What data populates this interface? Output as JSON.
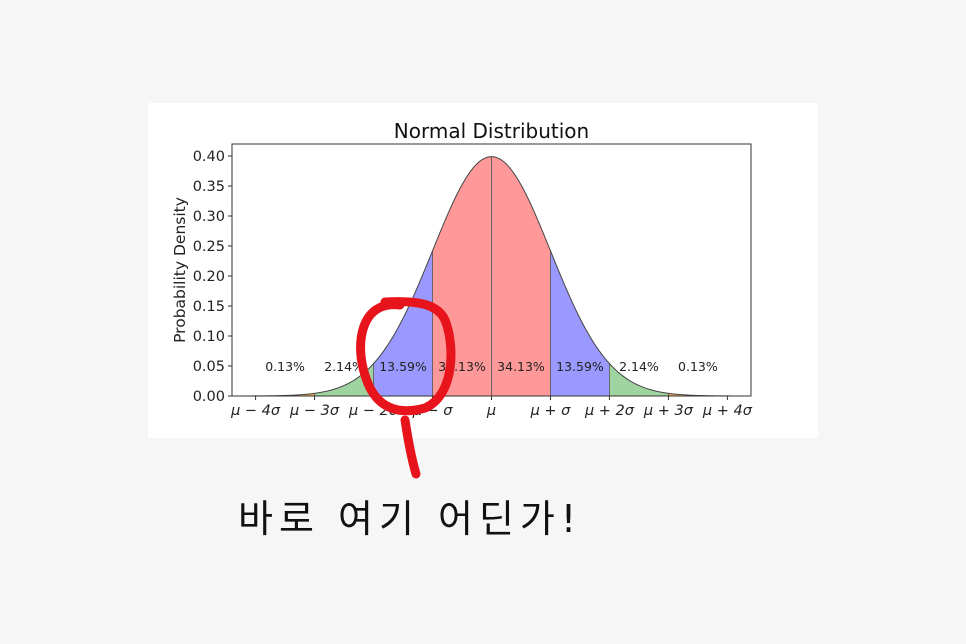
{
  "chart_data": {
    "type": "area",
    "title": "Normal Distribution",
    "xlabel": "",
    "ylabel": "Probability Density",
    "xlim": [
      -4.4,
      4.4
    ],
    "ylim": [
      0,
      0.42
    ],
    "grid": false,
    "x_ticks": [
      -4,
      -3,
      -2,
      -1,
      0,
      1,
      2,
      3,
      4
    ],
    "x_tick_labels": [
      "μ − 4σ",
      "μ − 3σ",
      "μ − 2σ",
      "μ − σ",
      "μ",
      "μ + σ",
      "μ + 2σ",
      "μ + 3σ",
      "μ + 4σ"
    ],
    "y_ticks": [
      0.0,
      0.05,
      0.1,
      0.15,
      0.2,
      0.25,
      0.3,
      0.35,
      0.4
    ],
    "y_tick_labels": [
      "0.00",
      "0.05",
      "0.10",
      "0.15",
      "0.20",
      "0.25",
      "0.30",
      "0.35",
      "0.40"
    ],
    "regions": [
      {
        "from": -4,
        "to": -3,
        "percent_label": "0.13%",
        "color": "#f0b050"
      },
      {
        "from": -3,
        "to": -2,
        "percent_label": "2.14%",
        "color": "#9fd39f"
      },
      {
        "from": -2,
        "to": -1,
        "percent_label": "13.59%",
        "color": "#9999ff"
      },
      {
        "from": -1,
        "to": 0,
        "percent_label": "34.13%",
        "color": "#ff9999"
      },
      {
        "from": 0,
        "to": 1,
        "percent_label": "34.13%",
        "color": "#ff9999"
      },
      {
        "from": 1,
        "to": 2,
        "percent_label": "13.59%",
        "color": "#9999ff"
      },
      {
        "from": 2,
        "to": 3,
        "percent_label": "2.14%",
        "color": "#9fd39f"
      },
      {
        "from": 3,
        "to": 4,
        "percent_label": "0.13%",
        "color": "#f0b050"
      }
    ],
    "percent_label_y": 0.05,
    "curve": "standard normal pdf"
  },
  "annotation": {
    "text": "바로 여기 어딘가!",
    "color": "#e8141c"
  }
}
